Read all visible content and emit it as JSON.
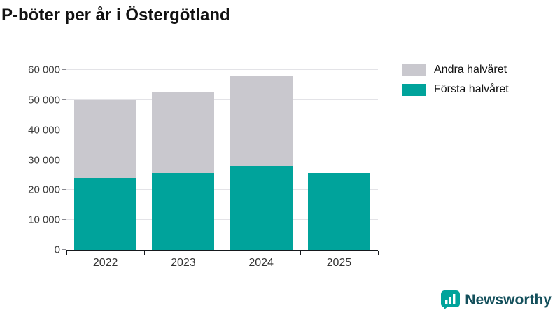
{
  "title": "P-böter per år i Östergötland",
  "legend": [
    {
      "label": "Andra halvåret",
      "color": "#c9c8ce"
    },
    {
      "label": "Första halvåret",
      "color": "#00a39b"
    }
  ],
  "branding": {
    "name": "Newsworthy",
    "icon": "bar-chart-speech-bubble-icon",
    "icon_color": "#00a39b",
    "wordmark_color": "#14505c"
  },
  "colors": {
    "first_half": "#00a39b",
    "second_half": "#c9c8ce",
    "axis": "#16191d",
    "grid": "#e3e3e7",
    "tick_text": "#3c3c3c",
    "title_text": "#121212"
  },
  "chart_data": {
    "type": "bar",
    "stacked": true,
    "title": "P-böter per år i Östergötland",
    "categories": [
      "2022",
      "2023",
      "2024",
      "2025"
    ],
    "series": [
      {
        "name": "Första halvåret",
        "color": "#00a39b",
        "values": [
          24000,
          25700,
          28000,
          25700
        ]
      },
      {
        "name": "Andra halvåret",
        "color": "#c9c8ce",
        "values": [
          26000,
          26800,
          30000,
          0
        ]
      }
    ],
    "stack_totals": [
      50000,
      52500,
      58000,
      25700
    ],
    "xlabel": "",
    "ylabel": "",
    "ylim": [
      0,
      60000
    ],
    "ytick_step": 10000,
    "ytick_labels": [
      "0",
      "10 000",
      "20 000",
      "30 000",
      "40 000",
      "50 000",
      "60 000"
    ],
    "grid": true,
    "legend_position": "top-right"
  }
}
